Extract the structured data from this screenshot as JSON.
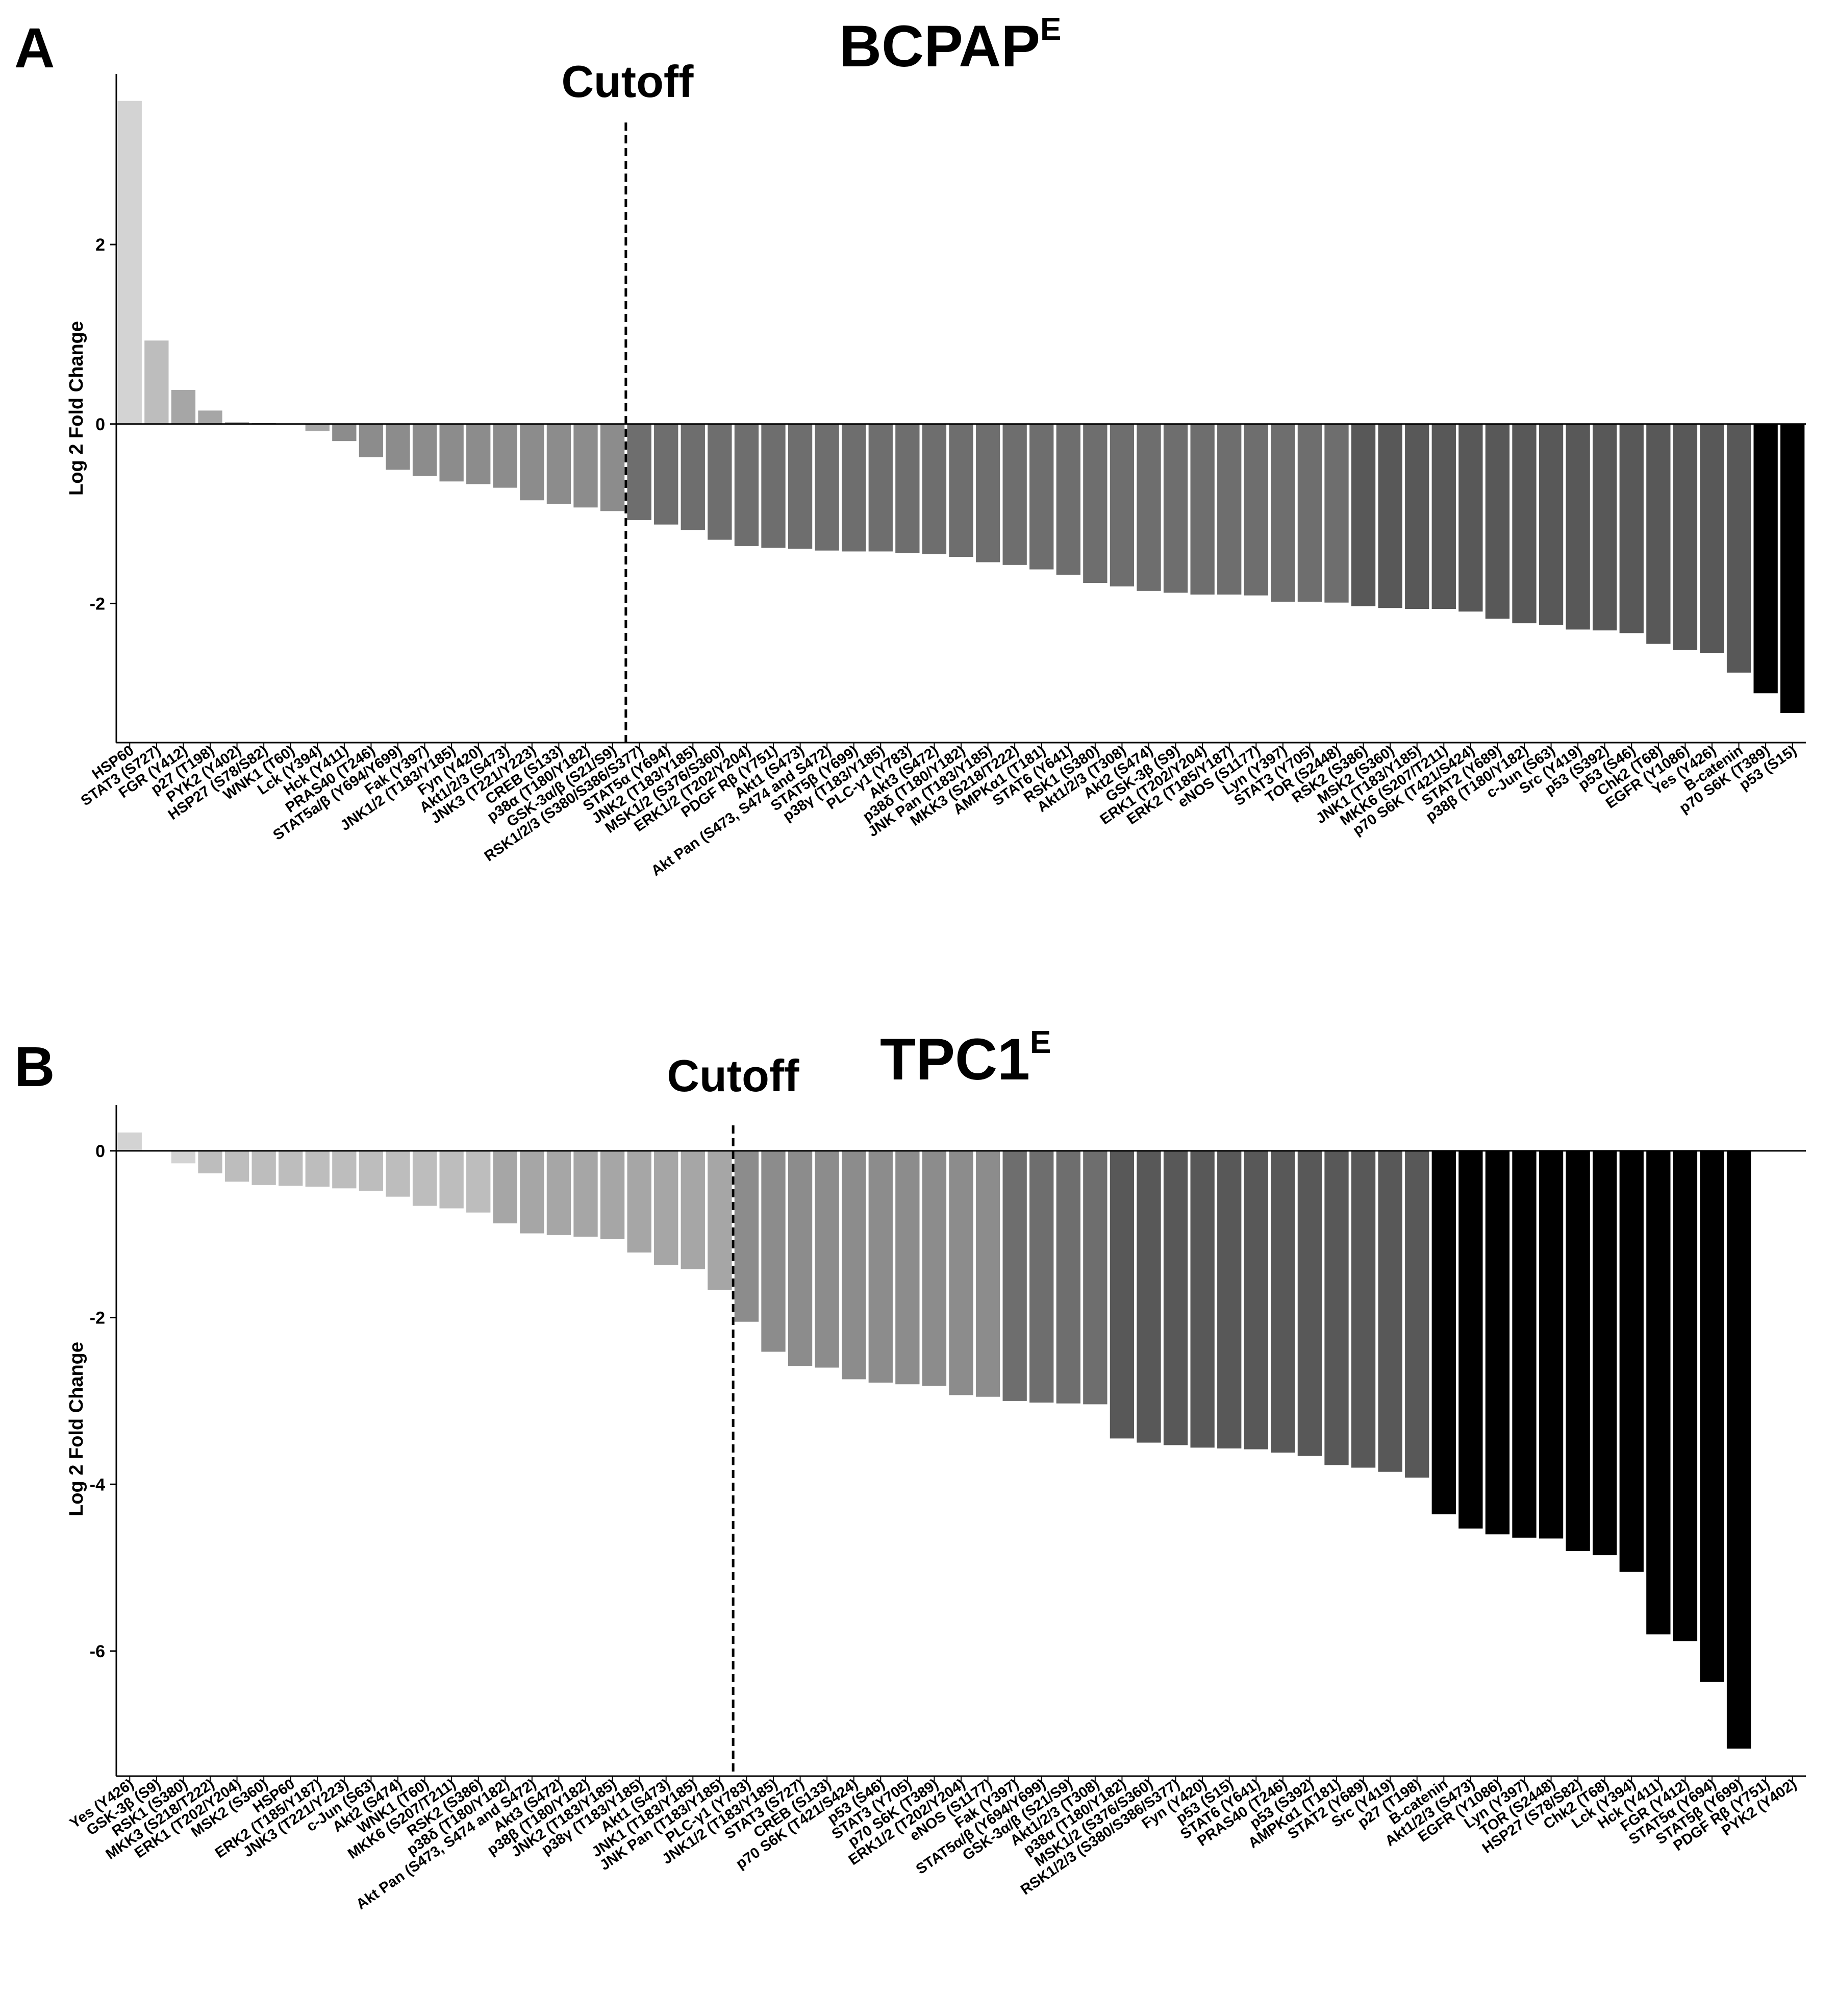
{
  "chart_data": [
    {
      "type": "bar",
      "panel_label": "A",
      "title": "BCPAP",
      "title_superscript": "E",
      "ylabel": "Log 2 Fold Change",
      "xlabel": "",
      "ylim": [
        -3.55,
        3.9
      ],
      "yticks": [
        2,
        0,
        -2
      ],
      "grid": false,
      "cutoff_label": "Cutoff",
      "cutoff_after_index": 18,
      "colors": [
        "#d3d3d3",
        "#bdbdbd",
        "#a6a6a6",
        "#8c8c8c",
        "#6e6e6e",
        "#585858",
        "#000000"
      ],
      "categories": [
        "HSP60",
        "STAT3 (S727)",
        "FGR (Y412)",
        "p27 (T198)",
        "PYK2 (Y402)",
        "HSP27 (S78/S82)",
        "WNK1 (T60)",
        "Lck (Y394)",
        "Hck (Y411)",
        "PRAS40 (T246)",
        "STAT5a/β (Y694/Y699)",
        "Fak (Y397)",
        "JNK1/2 (T183/Y185)",
        "Fyn (Y420)",
        "Akt1/2/3 (S473)",
        "JNK3 (T221/Y223)",
        "CREB (S133)",
        "p38α (T180/Y182)",
        "GSK-3α/β (S21/S9)",
        "RSK1/2/3 (S380/S386/S377)",
        "STAT5α (Y694)",
        "JNK2 (T183/Y185)",
        "MSK1/2 (S376/S360)",
        "ERK1/2 (T202/Y204)",
        "PDGF Rβ (Y751)",
        "Akt1 (S473)",
        "Akt Pan (S473, S474 and S472)",
        "STAT5β (Y699)",
        "p38γ (T183/Y185)",
        "PLC-γ1 (Y783)",
        "Akt3 (S472)",
        "p38δ (T180/Y182)",
        "JNK Pan (T183/Y185)",
        "MKK3 (S218/T222)",
        "AMPKα1 (T181)",
        "STAT6 (Y641)",
        "RSK1 (S380)",
        "Akt1/2/3 (T308)",
        "Akt2 (S474)",
        "GSK-3β (S9)",
        "ERK1 (T202/Y204)",
        "ERK2 (T185/Y187)",
        "eNOS (S1177)",
        "Lyn (Y397)",
        "STAT3 (Y705)",
        "TOR (S2448)",
        "RSK2 (S386)",
        "MSK2 (S360)",
        "JNK1 (T183/Y185)",
        "MKK6 (S207/T211)",
        "p70 S6K (T421/S424)",
        "STAT2 (Y689)",
        "p38β (T180/Y182)",
        "c-Jun (S63)",
        "Src (Y419)",
        "p53 (S392)",
        "p53 (S46)",
        "Chk2 (T68)",
        "EGFR (Y1086)",
        "Yes (Y426)",
        "B-catenin",
        "p70 S6K (T389)",
        "p53 (S15)"
      ],
      "values": [
        3.6,
        0.93,
        0.38,
        0.15,
        0.02,
        0.01,
        0.0,
        -0.08,
        -0.19,
        -0.37,
        -0.51,
        -0.58,
        -0.64,
        -0.67,
        -0.71,
        -0.85,
        -0.89,
        -0.93,
        -0.97,
        -1.07,
        -1.12,
        -1.18,
        -1.29,
        -1.36,
        -1.38,
        -1.39,
        -1.41,
        -1.42,
        -1.42,
        -1.44,
        -1.45,
        -1.48,
        -1.54,
        -1.57,
        -1.62,
        -1.68,
        -1.77,
        -1.81,
        -1.86,
        -1.88,
        -1.9,
        -1.9,
        -1.91,
        -1.98,
        -1.98,
        -1.99,
        -2.03,
        -2.05,
        -2.06,
        -2.06,
        -2.09,
        -2.17,
        -2.22,
        -2.24,
        -2.29,
        -2.3,
        -2.33,
        -2.45,
        -2.52,
        -2.55,
        -2.77,
        -3.0,
        -3.22
      ],
      "bar_color_index": [
        0,
        1,
        2,
        2,
        2,
        2,
        2,
        2,
        3,
        3,
        3,
        3,
        3,
        3,
        3,
        3,
        3,
        3,
        3,
        4,
        4,
        4,
        4,
        4,
        4,
        4,
        4,
        4,
        4,
        4,
        4,
        4,
        4,
        4,
        4,
        4,
        4,
        4,
        4,
        4,
        4,
        4,
        4,
        4,
        4,
        4,
        5,
        5,
        5,
        5,
        5,
        5,
        5,
        5,
        5,
        5,
        5,
        5,
        5,
        5,
        5,
        6,
        6
      ]
    },
    {
      "type": "bar",
      "panel_label": "B",
      "title": "TPC1",
      "title_superscript": "E",
      "ylabel": "Log 2 Fold Change",
      "xlabel": "",
      "ylim": [
        -7.5,
        0.55
      ],
      "yticks": [
        0,
        -2,
        -4,
        -6
      ],
      "grid": false,
      "cutoff_label": "Cutoff",
      "cutoff_after_index": 22,
      "colors": [
        "#d3d3d3",
        "#bdbdbd",
        "#a6a6a6",
        "#8c8c8c",
        "#6e6e6e",
        "#585858",
        "#000000"
      ],
      "categories": [
        "Yes (Y426)",
        "GSK-3β (S9)",
        "RSK1 (S380)",
        "MKK3 (S218/T222)",
        "ERK1 (T202/Y204)",
        "MSK2 (S360)",
        "HSP60",
        "ERK2 (T185/Y187)",
        "JNK3 (T221/Y223)",
        "c-Jun (S63)",
        "Akt2 (S474)",
        "WNK1 (T60)",
        "MKK6 (S207/T211)",
        "RSK2 (S386)",
        "p38δ (T180/Y182)",
        "Akt Pan (S473, S474 and S472)",
        "Akt3 (S472)",
        "p38β (T180/Y182)",
        "JNK2 (T183/Y185)",
        "p38γ (T183/Y185)",
        "Akt1 (S473)",
        "JNK1 (T183/Y185)",
        "JNK Pan (T183/Y185)",
        "PLC-γ1 (Y783)",
        "JNK1/2 (T183/Y185)",
        "STAT3 (S727)",
        "CREB (S133)",
        "p70 S6K (T421/S424)",
        "p53 (S46)",
        "STAT3 (Y705)",
        "p70 S6K (T389)",
        "ERK1/2 (T202/Y204)",
        "eNOS (S1177)",
        "Fak (Y397)",
        "STAT5α/β (Y694/Y699)",
        "GSK-3α/β (S21/S9)",
        "Akt1/2/3 (T308)",
        "p38α (T180/Y182)",
        "MSK1/2 (S376/S360)",
        "RSK1/2/3 (S380/S386/S377)",
        "Fyn (Y420)",
        "p53 (S15)",
        "STAT6 (Y641)",
        "PRAS40 (T246)",
        "p53 (S392)",
        "AMPKα1 (T181)",
        "STAT2 (Y689)",
        "Src (Y419)",
        "p27 (T198)",
        "B-catenin",
        "Akt1/2/3 (S473)",
        "EGFR (Y1086)",
        "Lyn (Y397)",
        "TOR (S2448)",
        "HSP27 (S78/S82)",
        "Chk2 (T68)",
        "Lck (Y394)",
        "Hck (Y411)",
        "FGR (Y412)",
        "STAT5α (Y694)",
        "STAT5β (Y699)",
        "PDGF Rβ (Y751)",
        "PYK2 (Y402)"
      ],
      "values": [
        0.22,
        0.0,
        -0.15,
        -0.27,
        -0.37,
        -0.41,
        -0.42,
        -0.43,
        -0.45,
        -0.48,
        -0.55,
        -0.66,
        -0.69,
        -0.74,
        -0.87,
        -0.99,
        -1.01,
        -1.03,
        -1.06,
        -1.22,
        -1.37,
        -1.42,
        -1.67,
        -2.05,
        -2.41,
        -2.58,
        -2.6,
        -2.74,
        -2.78,
        -2.8,
        -2.82,
        -2.93,
        -2.95,
        -3.0,
        -3.02,
        -3.03,
        -3.04,
        -3.45,
        -3.5,
        -3.53,
        -3.56,
        -3.57,
        -3.58,
        -3.62,
        -3.66,
        -3.77,
        -3.8,
        -3.85,
        -3.92,
        -4.36,
        -4.53,
        -4.6,
        -4.64,
        -4.65,
        -4.8,
        -4.85,
        -5.05,
        -5.8,
        -5.88,
        -6.37,
        -7.17,
        0.0,
        0.0
      ],
      "bar_color_index": [
        0,
        0,
        0,
        1,
        1,
        1,
        1,
        1,
        1,
        1,
        1,
        1,
        1,
        1,
        2,
        2,
        2,
        2,
        2,
        2,
        2,
        2,
        2,
        3,
        3,
        3,
        3,
        3,
        3,
        3,
        3,
        3,
        3,
        4,
        4,
        4,
        4,
        5,
        5,
        5,
        5,
        5,
        5,
        5,
        5,
        5,
        5,
        5,
        5,
        6,
        6,
        6,
        6,
        6,
        6,
        6,
        6,
        6,
        6,
        6,
        6,
        6,
        6
      ]
    }
  ]
}
